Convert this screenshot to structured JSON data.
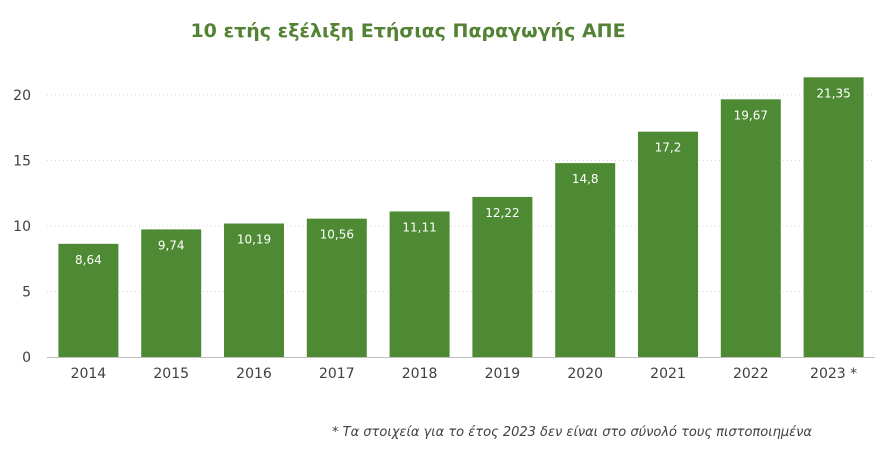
{
  "chart_data": {
    "type": "bar",
    "title": "10 ετής εξέλιξη Ετήσιας Παραγωγής ΑΠΕ",
    "categories": [
      "2014",
      "2015",
      "2016",
      "2017",
      "2018",
      "2019",
      "2020",
      "2021",
      "2022",
      "2023 *"
    ],
    "values": [
      8.64,
      9.74,
      10.19,
      10.56,
      11.11,
      12.22,
      14.8,
      17.2,
      19.67,
      21.35
    ],
    "data_labels": [
      "8,64",
      "9,74",
      "10,19",
      "10,56",
      "11,11",
      "12,22",
      "14,8",
      "17,2",
      "19,67",
      "21,35"
    ],
    "xlabel": "",
    "ylabel": "",
    "ylim": [
      0,
      22
    ],
    "yticks": [
      0,
      5,
      10,
      15,
      20
    ],
    "grid": true,
    "bar_color": "#4e8a34",
    "footnote": "*  Τα στοιχεία για το έτος 2023 δεν είναι στο σύνολό τους πιστοποιημένα"
  }
}
